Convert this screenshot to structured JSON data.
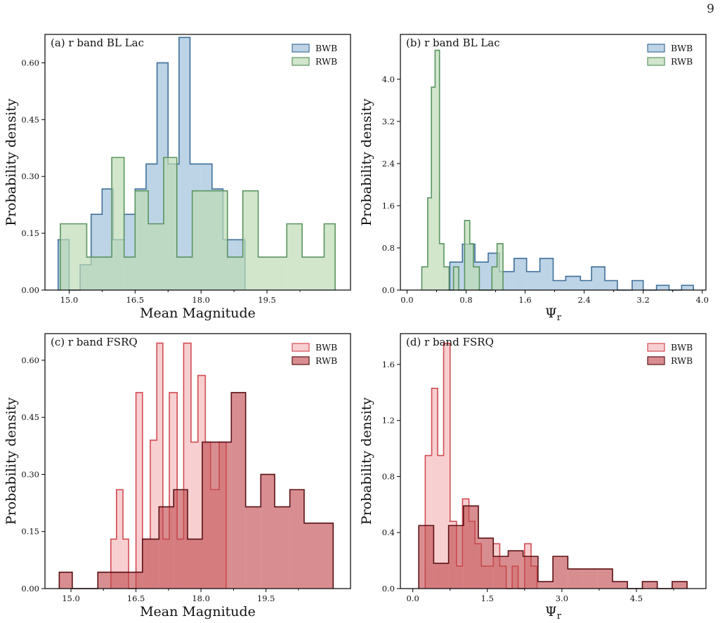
{
  "page_number": "9",
  "colors": {
    "bllac_bwb_fill": "#a7c5de",
    "bllac_bwb_edge": "#3f6f9a",
    "bllac_rwb_fill": "#bddcb5",
    "bllac_rwb_edge": "#5a9460",
    "fsrq_bwb_fill": "#f4b6b8",
    "fsrq_bwb_edge": "#d24c52",
    "fsrq_rwb_fill": "#c0484c",
    "fsrq_rwb_edge": "#5a1014"
  },
  "chart_data": [
    {
      "id": "a",
      "type": "histogram-step",
      "panel_label": "(a)  r band BL Lac",
      "xlabel": "Mean Magnitude",
      "ylabel": "Probability density",
      "xlim": [
        14.45,
        21.4
      ],
      "ylim": [
        0,
        0.675
      ],
      "xticks": [
        15.0,
        16.5,
        18.0,
        19.5
      ],
      "xtick_labels": [
        "15.0",
        "16.5",
        "18.0",
        "19.5"
      ],
      "yticks": [
        0,
        0.15,
        0.3,
        0.45,
        0.6
      ],
      "ytick_labels": [
        "0.00",
        "0.15",
        "0.30",
        "0.45",
        "0.60"
      ],
      "legend": "upper-right",
      "series": [
        {
          "name": "BWB",
          "edges": [
            14.75,
            15.0,
            15.25,
            15.5,
            15.75,
            16.0,
            16.25,
            16.5,
            16.75,
            17.0,
            17.25,
            17.5,
            17.75,
            18.0,
            18.25,
            18.5,
            18.75,
            19.0
          ],
          "values": [
            0.133,
            0.0,
            0.067,
            0.2,
            0.267,
            0.133,
            0.2,
            0.267,
            0.333,
            0.6,
            0.333,
            0.667,
            0.333,
            0.333,
            0.267,
            0.133,
            0.133
          ],
          "fill": "bllac_bwb_fill",
          "edge": "bllac_bwb_edge",
          "alpha": 0.75
        },
        {
          "name": "RWB",
          "edges": [
            14.8,
            15.4,
            15.97,
            16.25,
            16.5,
            16.8,
            17.15,
            17.45,
            17.8,
            18.2,
            18.6,
            18.95,
            19.3,
            19.95,
            20.3,
            20.8,
            21.05
          ],
          "values": [
            0.175,
            0.087,
            0.35,
            0.087,
            0.262,
            0.175,
            0.35,
            0.087,
            0.262,
            0.262,
            0.087,
            0.262,
            0.087,
            0.175,
            0.087,
            0.175
          ],
          "fill": "bllac_rwb_fill",
          "edge": "bllac_rwb_edge",
          "alpha": 0.7
        }
      ]
    },
    {
      "id": "b",
      "type": "histogram-step",
      "panel_label": "(b)  r band BL Lac",
      "xlabel": "Ψ_r",
      "ylabel": "Probability density",
      "xlim": [
        -0.09,
        4.05
      ],
      "ylim": [
        0,
        4.85
      ],
      "xticks": [
        0,
        0.8,
        1.6,
        2.4,
        3.2,
        4.0
      ],
      "xtick_labels": [
        "0.0",
        "0.8",
        "1.6",
        "2.4",
        "3.2",
        "4.0"
      ],
      "yticks": [
        0,
        0.8,
        1.6,
        2.4,
        3.2,
        4.0
      ],
      "ytick_labels": [
        "0.0",
        "0.8",
        "1.6",
        "2.4",
        "3.2",
        "4.0"
      ],
      "legend": "upper-right",
      "series": [
        {
          "name": "BWB",
          "edges": [
            0.58,
            0.75,
            0.92,
            1.1,
            1.25,
            1.45,
            1.62,
            1.8,
            1.98,
            2.15,
            2.35,
            2.5,
            2.68,
            2.85,
            3.05,
            3.2,
            3.38,
            3.55,
            3.72,
            3.88
          ],
          "values": [
            0.53,
            0.87,
            0.53,
            0.7,
            0.35,
            0.6,
            0.35,
            0.6,
            0.18,
            0.26,
            0.18,
            0.44,
            0.18,
            0.0,
            0.18,
            0.0,
            0.09,
            0.0,
            0.09
          ],
          "fill": "bllac_bwb_fill",
          "edge": "bllac_bwb_edge",
          "alpha": 0.75
        },
        {
          "name": "RWB",
          "edges": [
            0.2,
            0.28,
            0.33,
            0.38,
            0.44,
            0.5,
            0.57,
            0.63,
            0.7,
            0.78,
            0.85,
            0.9,
            0.98,
            1.07,
            1.15,
            1.22,
            1.3
          ],
          "values": [
            0.44,
            1.75,
            3.85,
            4.55,
            0.88,
            0.44,
            0.0,
            0.44,
            0.0,
            1.32,
            0.88,
            0.44,
            0.0,
            0.0,
            0.44,
            0.88
          ],
          "fill": "bllac_rwb_fill",
          "edge": "bllac_rwb_edge",
          "alpha": 0.7
        }
      ]
    },
    {
      "id": "c",
      "type": "histogram-step",
      "panel_label": "(c)  r band FSRQ",
      "xlabel": "Mean Magnitude",
      "ylabel": "Probability density",
      "xlim": [
        14.4,
        21.45
      ],
      "ylim": [
        0,
        0.67
      ],
      "xticks": [
        15.0,
        16.5,
        18.0,
        19.5
      ],
      "xtick_labels": [
        "15.0",
        "16.5",
        "18.0",
        "19.5"
      ],
      "yticks": [
        0,
        0.15,
        0.3,
        0.45,
        0.6
      ],
      "ytick_labels": [
        "0.00",
        "0.15",
        "0.30",
        "0.45",
        "0.60"
      ],
      "legend": "upper-right",
      "series": [
        {
          "name": "BWB",
          "edges": [
            15.92,
            16.05,
            16.2,
            16.33,
            16.5,
            16.65,
            16.83,
            16.98,
            17.12,
            17.27,
            17.45,
            17.6,
            17.77,
            17.93,
            18.1,
            18.22,
            18.42,
            18.58
          ],
          "values": [
            0.13,
            0.26,
            0.13,
            0.0,
            0.515,
            0.13,
            0.39,
            0.645,
            0.13,
            0.515,
            0.13,
            0.645,
            0.385,
            0.56,
            0.385,
            0.26,
            0.385
          ],
          "fill": "fsrq_bwb_fill",
          "edge": "fsrq_bwb_edge",
          "alpha": 0.65
        },
        {
          "name": "RWB",
          "edges": [
            14.73,
            15.03,
            15.32,
            15.62,
            16.27,
            16.65,
            17.03,
            17.37,
            17.69,
            18.03,
            18.37,
            18.7,
            19.03,
            19.38,
            19.7,
            20.05,
            20.38,
            21.05
          ],
          "values": [
            0.043,
            0.0,
            0.0,
            0.043,
            0.043,
            0.13,
            0.215,
            0.26,
            0.13,
            0.385,
            0.385,
            0.515,
            0.215,
            0.3,
            0.215,
            0.26,
            0.172
          ],
          "fill": "fsrq_rwb_fill",
          "edge": "fsrq_rwb_edge",
          "alpha": 0.62
        }
      ]
    },
    {
      "id": "d",
      "type": "histogram-step",
      "panel_label": "(d)  r band FSRQ",
      "xlabel": "Ψ_r",
      "ylabel": "Probability density",
      "xlim": [
        -0.25,
        5.9
      ],
      "ylim": [
        0,
        1.82
      ],
      "xticks": [
        0,
        1.5,
        3.0,
        4.5
      ],
      "xtick_labels": [
        "0.0",
        "1.5",
        "3.0",
        "4.5"
      ],
      "yticks": [
        0,
        0.4,
        0.8,
        1.2,
        1.6
      ],
      "ytick_labels": [
        "0.0",
        "0.4",
        "0.8",
        "1.2",
        "1.6"
      ],
      "legend": "upper-right",
      "series": [
        {
          "name": "BWB",
          "edges": [
            0.25,
            0.38,
            0.5,
            0.62,
            0.75,
            0.88,
            1.0,
            1.13,
            1.25,
            1.38,
            1.5,
            1.62,
            1.75,
            1.88,
            2.0,
            2.12,
            2.25,
            2.38,
            2.5
          ],
          "values": [
            0.95,
            1.43,
            0.95,
            1.75,
            0.48,
            0.16,
            0.64,
            0.48,
            0.32,
            0.16,
            0.16,
            0.32,
            0.16,
            0.0,
            0.16,
            0.0,
            0.32,
            0.16
          ],
          "fill": "fsrq_bwb_fill",
          "edge": "fsrq_bwb_edge",
          "alpha": 0.65
        },
        {
          "name": "RWB",
          "edges": [
            0.12,
            0.42,
            0.72,
            1.02,
            1.32,
            1.62,
            1.92,
            2.22,
            2.52,
            2.82,
            3.12,
            3.42,
            3.72,
            4.02,
            4.32,
            4.62,
            4.92,
            5.22,
            5.52
          ],
          "values": [
            0.45,
            0.18,
            0.45,
            0.59,
            0.36,
            0.23,
            0.27,
            0.23,
            0.05,
            0.23,
            0.14,
            0.14,
            0.14,
            0.05,
            0.0,
            0.05,
            0.0,
            0.05
          ],
          "fill": "fsrq_rwb_fill",
          "edge": "fsrq_rwb_edge",
          "alpha": 0.62
        }
      ]
    }
  ]
}
